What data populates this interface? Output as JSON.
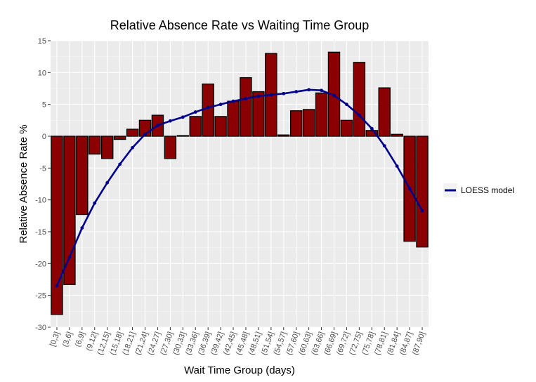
{
  "chart_data": {
    "type": "bar",
    "title": "Relative Absence Rate vs Waiting Time Group",
    "xlabel": "Wait Time Group (days)",
    "ylabel": "Relative Absence Rate %",
    "ylim": [
      -30,
      15
    ],
    "yticks": [
      -30,
      -25,
      -20,
      -15,
      -10,
      -5,
      0,
      5,
      10,
      15
    ],
    "grid": true,
    "categories": [
      "[0,3]",
      "(3,6]",
      "(6,9]",
      "(9,12]",
      "(12,15]",
      "(15,18]",
      "(18,21]",
      "(21,24]",
      "(24,27]",
      "(27,30]",
      "(30,33]",
      "(33,36]",
      "(36,39]",
      "(39,42]",
      "(42,45]",
      "(45,48]",
      "(48,51]",
      "(51,54]",
      "(54,57]",
      "(57,60]",
      "(60,63]",
      "(63,66]",
      "(66,69]",
      "(69,72]",
      "(72,75]",
      "(75,78]",
      "(78,81]",
      "(81,84]",
      "(84,87]",
      "(87,90]"
    ],
    "series": [
      {
        "kind": "bar",
        "color": "#8b0000",
        "values": [
          -28.0,
          -23.3,
          -12.3,
          -2.8,
          -3.5,
          -0.5,
          1.1,
          2.5,
          3.3,
          -3.5,
          0.1,
          3.1,
          8.2,
          3.1,
          5.5,
          9.2,
          7.0,
          13.0,
          0.2,
          4.0,
          4.2,
          6.8,
          13.2,
          2.5,
          11.6,
          0.9,
          7.6,
          0.3,
          -16.5,
          -17.4
        ]
      },
      {
        "kind": "line",
        "name": "LOESS model",
        "color": "#00008b",
        "values": [
          -23.5,
          -19.0,
          -14.4,
          -10.5,
          -7.3,
          -4.4,
          -1.8,
          0.3,
          1.7,
          2.4,
          3.0,
          3.8,
          4.5,
          5.0,
          5.5,
          5.9,
          6.3,
          6.5,
          6.7,
          7.0,
          7.3,
          7.2,
          6.4,
          5.0,
          3.3,
          1.2,
          -1.5,
          -4.7,
          -8.2,
          -11.7
        ]
      }
    ],
    "legend": {
      "position": "right",
      "entries": [
        "LOESS model"
      ]
    }
  }
}
